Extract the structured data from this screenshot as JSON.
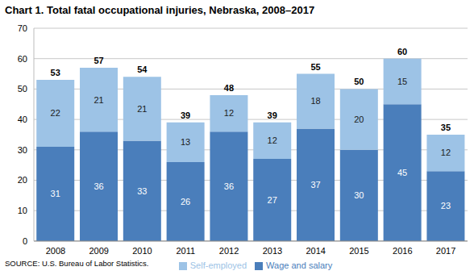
{
  "chart_data": {
    "type": "bar",
    "title": "Chart 1. Total fatal occupational injuries, Nebraska, 2008–2017",
    "categories": [
      "2008",
      "2009",
      "2010",
      "2011",
      "2012",
      "2013",
      "2014",
      "2015",
      "2016",
      "2017"
    ],
    "series": [
      {
        "name": "Wage and salary",
        "color": "#4a7ebb",
        "values": [
          31,
          36,
          33,
          26,
          36,
          27,
          37,
          30,
          45,
          23
        ]
      },
      {
        "name": "Self-employed",
        "color": "#9dc3e6",
        "values": [
          22,
          21,
          21,
          13,
          12,
          12,
          18,
          20,
          15,
          12
        ]
      }
    ],
    "totals": [
      53,
      57,
      54,
      39,
      48,
      39,
      55,
      50,
      60,
      35
    ],
    "ylim": [
      0,
      70
    ],
    "yticks": [
      0,
      10,
      20,
      30,
      40,
      50,
      60,
      70
    ],
    "grid": true,
    "stacked": true,
    "data_labels": true,
    "legend": "bottom",
    "source": "SOURCE: U.S. Bureau of Labor Statistics."
  }
}
